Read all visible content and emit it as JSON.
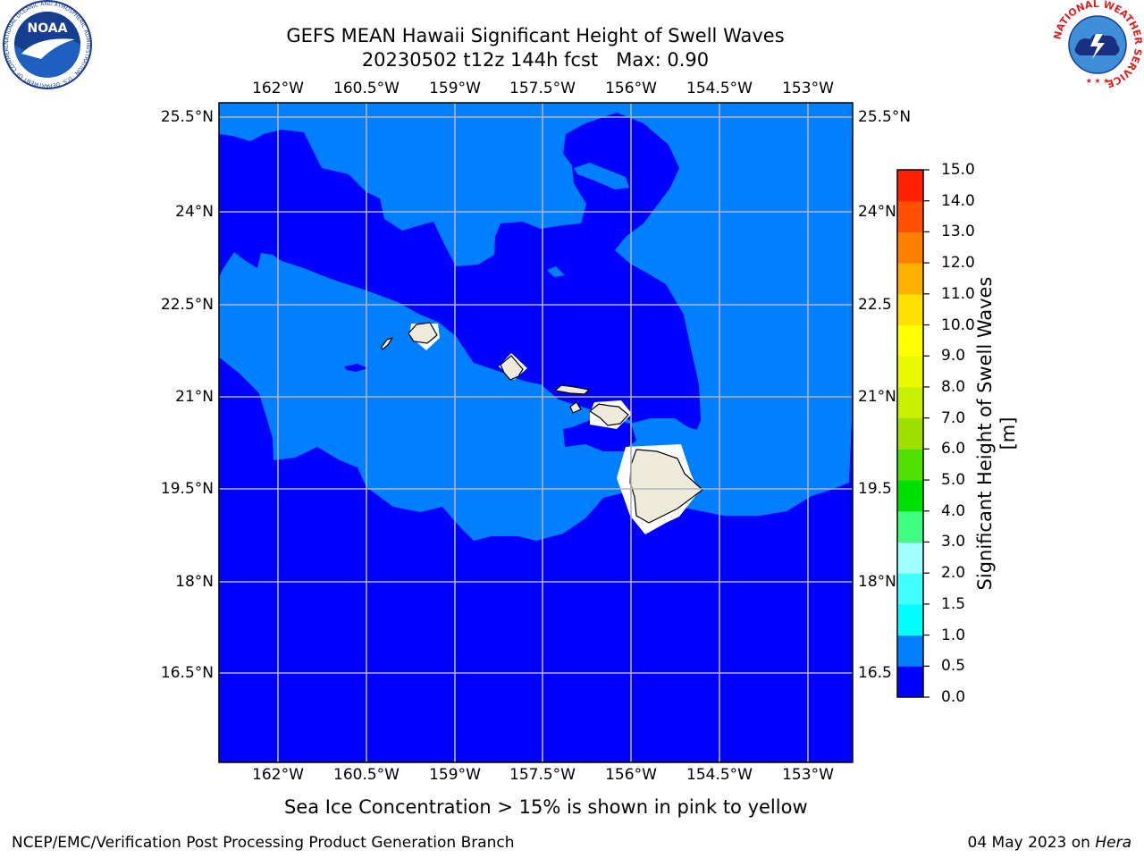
{
  "header": {
    "title_line1": "GEFS MEAN Hawaii Significant Height of Swell Waves",
    "title_line2": "20230502 t12z 144h fcst   Max: 0.90"
  },
  "logos": {
    "left": "noaa-logo",
    "right": "national-weather-service-logo",
    "left_text": "NOAA",
    "left_ring_text": "NATIONAL OCEANIC AND ATMOSPHERIC ADMINISTRATION · U.S. DEPARTMENT OF COMMERCE",
    "right_ring_text": "NATIONAL WEATHER SERVICE"
  },
  "map": {
    "region": "Hawaii",
    "longitude_ticks": [
      "162°W",
      "160.5°W",
      "159°W",
      "157.5°W",
      "156°W",
      "154.5°W",
      "153°W"
    ],
    "latitude_ticks": [
      "25.5°N",
      "24°N",
      "22.5°N",
      "21°N",
      "19.5°N",
      "18°N",
      "16.5°N"
    ],
    "right_latitude_ticks": [
      "25.5°N",
      "24°N",
      "22.5",
      "21°N",
      "19.5",
      "18°N",
      "16.5"
    ],
    "lon_range": [
      -163,
      -152.7
    ],
    "lat_range": [
      15.2,
      25.7
    ],
    "grid": true,
    "colors": {
      "deep": "#0000ff",
      "light": "#0080ff",
      "land": "#eeebdc",
      "grid": "#b3b3b3"
    }
  },
  "colorbar": {
    "label": "Significant Height of Swell Waves [m]",
    "ticks": [
      "15.0",
      "14.0",
      "13.0",
      "12.0",
      "11.0",
      "10.0",
      "9.0",
      "8.0",
      "7.0",
      "6.0",
      "5.0",
      "4.0",
      "3.0",
      "2.0",
      "1.5",
      "1.0",
      "0.5",
      "0.0"
    ],
    "levels": [
      0,
      0.5,
      1,
      1.5,
      2,
      3,
      4,
      5,
      6,
      7,
      8,
      9,
      10,
      11,
      12,
      13,
      14,
      15
    ],
    "colors": [
      "#0000ff",
      "#0080ff",
      "#00ffff",
      "#40ffff",
      "#a0ffff",
      "#40ff80",
      "#00e000",
      "#50e000",
      "#a0e000",
      "#c8f000",
      "#e8f800",
      "#ffff00",
      "#ffe000",
      "#ffb000",
      "#ff8000",
      "#ff5000",
      "#ff2000"
    ]
  },
  "notes": {
    "ice": "Sea Ice Concentration > 15% is shown in pink to yellow"
  },
  "footer": {
    "left": "NCEP/EMC/Verification Post Processing Product Generation Branch",
    "date": "04 May 2023 on ",
    "machine": "Hera"
  }
}
